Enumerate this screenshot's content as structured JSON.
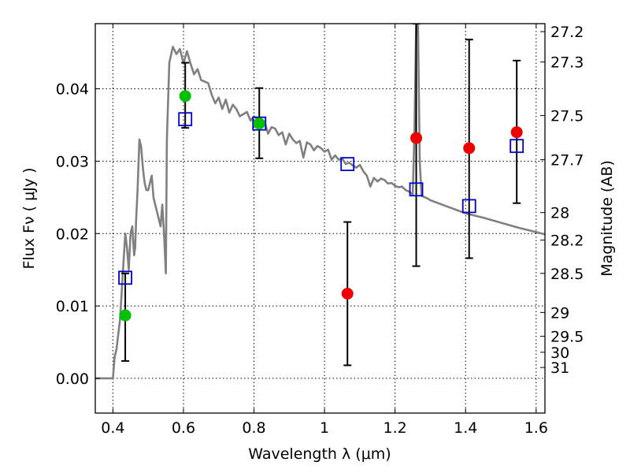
{
  "chart_data": {
    "type": "scatter",
    "xlabel": "Wavelength  λ (μm)",
    "ylabel": "Flux  Fν  ( μJy )",
    "right_ylabel": "Magnitude (AB)",
    "xlim": [
      0.35,
      1.625
    ],
    "ylim": [
      -0.0048,
      0.049
    ],
    "grid": true,
    "x_ticks": [
      0.4,
      0.6,
      0.8,
      1.0,
      1.2,
      1.4,
      1.6
    ],
    "x_tick_labels": [
      "0.4",
      "0.6",
      "0.8",
      "1",
      "1.2",
      "1.4",
      "1.6"
    ],
    "y_ticks": [
      0.0,
      0.01,
      0.02,
      0.03,
      0.04
    ],
    "y_tick_labels": [
      "0.00",
      "0.01",
      "0.02",
      "0.03",
      "0.04"
    ],
    "right_ticks": [
      {
        "label": "27.2",
        "flux": 0.0479
      },
      {
        "label": "27.3",
        "flux": 0.0437
      },
      {
        "label": "27.5",
        "flux": 0.0363
      },
      {
        "label": "27.7",
        "flux": 0.0302
      },
      {
        "label": "28",
        "flux": 0.0229
      },
      {
        "label": "28.2",
        "flux": 0.0191
      },
      {
        "label": "28.5",
        "flux": 0.0145
      },
      {
        "label": "29",
        "flux": 0.0091
      },
      {
        "label": "29.5",
        "flux": 0.0058
      },
      {
        "label": "30",
        "flux": 0.0036
      },
      {
        "label": "31",
        "flux": 0.0015
      }
    ],
    "series": [
      {
        "kind": "line",
        "color": "#808080",
        "x": [
          0.35,
          0.4,
          0.405,
          0.41,
          0.42,
          0.425,
          0.43,
          0.435,
          0.44,
          0.445,
          0.45,
          0.455,
          0.46,
          0.463,
          0.466,
          0.47,
          0.475,
          0.48,
          0.485,
          0.49,
          0.495,
          0.5,
          0.505,
          0.51,
          0.515,
          0.52,
          0.525,
          0.53,
          0.535,
          0.54,
          0.545,
          0.55,
          0.553,
          0.56,
          0.57,
          0.58,
          0.59,
          0.6,
          0.61,
          0.62,
          0.63,
          0.64,
          0.65,
          0.66,
          0.67,
          0.68,
          0.69,
          0.7,
          0.71,
          0.72,
          0.73,
          0.74,
          0.75,
          0.76,
          0.77,
          0.78,
          0.79,
          0.8,
          0.81,
          0.82,
          0.83,
          0.84,
          0.85,
          0.86,
          0.87,
          0.88,
          0.89,
          0.9,
          0.91,
          0.92,
          0.93,
          0.94,
          0.95,
          0.96,
          0.97,
          0.98,
          0.99,
          1.0,
          1.01,
          1.02,
          1.03,
          1.04,
          1.05,
          1.06,
          1.07,
          1.08,
          1.09,
          1.1,
          1.11,
          1.12,
          1.13,
          1.14,
          1.15,
          1.16,
          1.17,
          1.18,
          1.19,
          1.2,
          1.21,
          1.22,
          1.23,
          1.24,
          1.25,
          1.255,
          1.26,
          1.265,
          1.27,
          1.275,
          1.28,
          1.29,
          1.3,
          1.35,
          1.4,
          1.45,
          1.5,
          1.55,
          1.6,
          1.625
        ],
        "y": [
          0.0,
          0.0,
          0.003,
          0.004,
          0.008,
          0.012,
          0.016,
          0.02,
          0.018,
          0.015,
          0.02,
          0.021,
          0.017,
          0.018,
          0.022,
          0.026,
          0.033,
          0.032,
          0.029,
          0.027,
          0.026,
          0.026,
          0.027,
          0.028,
          0.025,
          0.024,
          0.023,
          0.022,
          0.021,
          0.024,
          0.02,
          0.0145,
          0.033,
          0.0436,
          0.0458,
          0.0448,
          0.0455,
          0.0435,
          0.0452,
          0.0435,
          0.042,
          0.0427,
          0.0412,
          0.041,
          0.0408,
          0.0392,
          0.038,
          0.0388,
          0.0372,
          0.0385,
          0.0367,
          0.0378,
          0.0372,
          0.0362,
          0.0365,
          0.0368,
          0.0356,
          0.0362,
          0.0358,
          0.0347,
          0.0355,
          0.0338,
          0.0347,
          0.0345,
          0.0336,
          0.034,
          0.0323,
          0.0338,
          0.033,
          0.0325,
          0.0328,
          0.0305,
          0.0326,
          0.0323,
          0.0315,
          0.0321,
          0.0318,
          0.0313,
          0.0316,
          0.0302,
          0.0308,
          0.0302,
          0.0304,
          0.0296,
          0.0298,
          0.0294,
          0.0291,
          0.0295,
          0.0286,
          0.028,
          0.0265,
          0.0277,
          0.0272,
          0.0276,
          0.0274,
          0.0269,
          0.027,
          0.0266,
          0.0264,
          0.0265,
          0.026,
          0.0258,
          0.0254,
          0.034,
          0.049,
          0.049,
          0.03,
          0.0252,
          0.0251,
          0.0249,
          0.0246,
          0.0237,
          0.0228,
          0.0222,
          0.0215,
          0.0208,
          0.0202,
          0.0199
        ]
      },
      {
        "kind": "open-square",
        "color": "#0000cc",
        "x": [
          0.435,
          0.605,
          0.815,
          1.065,
          1.26,
          1.41,
          1.545
        ],
        "y": [
          0.0139,
          0.0358,
          0.0352,
          0.0296,
          0.0261,
          0.0238,
          0.0321
        ]
      },
      {
        "kind": "filled-circle",
        "color": "#00c000",
        "x": [
          0.435,
          0.605,
          0.815
        ],
        "y": [
          0.0087,
          0.039,
          0.0352
        ],
        "yerr_low": [
          0.0024,
          0.0346,
          0.0304
        ],
        "yerr_high": [
          0.0145,
          0.0436,
          0.0401
        ]
      },
      {
        "kind": "filled-circle",
        "color": "#ee0000",
        "x": [
          1.065,
          1.26,
          1.41,
          1.545
        ],
        "y": [
          0.0117,
          0.0332,
          0.0318,
          0.034
        ],
        "yerr_low": [
          0.0018,
          0.0155,
          0.0166,
          0.0242
        ],
        "yerr_high": [
          0.0216,
          0.049,
          0.0468,
          0.0439
        ]
      }
    ]
  }
}
